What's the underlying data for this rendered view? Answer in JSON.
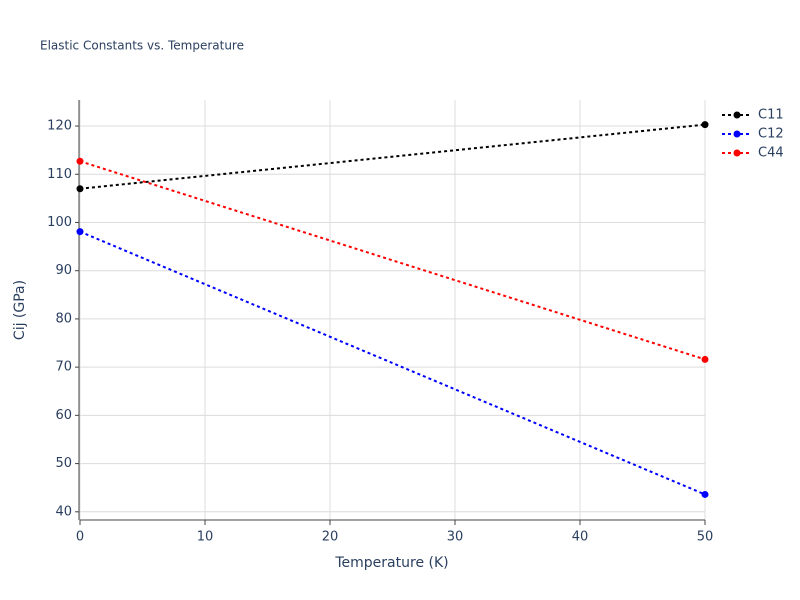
{
  "chart_data": {
    "type": "line",
    "title": "Elastic Constants vs. Temperature",
    "x_label": "Temperature (K)",
    "y_label": "Cij (GPa)",
    "x": [
      0,
      50
    ],
    "series": [
      {
        "name": "C11",
        "color": "#000000",
        "values": [
          107,
          120.3
        ]
      },
      {
        "name": "C12",
        "color": "#0000ff",
        "values": [
          98.1,
          43.6
        ]
      },
      {
        "name": "C44",
        "color": "#ff0000",
        "values": [
          112.7,
          71.6
        ]
      }
    ],
    "xlim": [
      0,
      50
    ],
    "xticks": [
      0,
      10,
      20,
      30,
      40,
      50
    ],
    "ylim": [
      38.3,
      125.4
    ],
    "yticks": [
      40,
      50,
      60,
      70,
      80,
      90,
      100,
      110,
      120
    ],
    "grid": true,
    "legend": "top-right"
  }
}
